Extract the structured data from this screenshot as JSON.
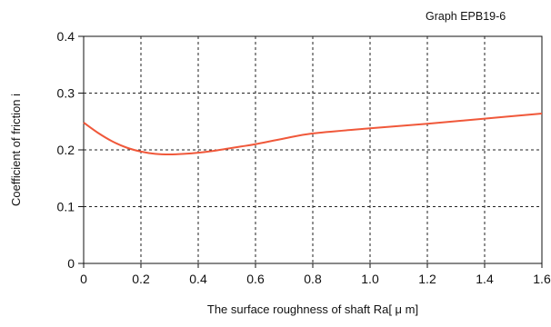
{
  "chart_data": {
    "type": "line",
    "title": "Graph EPB19-6",
    "xlabel": "The surface roughness of shaft  Ra[ μ m]",
    "ylabel": "Coefficient of friction i",
    "xlim": [
      0,
      1.6
    ],
    "ylim": [
      0,
      0.4
    ],
    "xticks": [
      "0",
      "0.2",
      "0.4",
      "0.6",
      "0.8",
      "1.0",
      "1.2",
      "1.4",
      "1.6"
    ],
    "yticks": [
      "0",
      "0.1",
      "0.2",
      "0.3",
      "0.4"
    ],
    "grid": true,
    "line_color": "#f0583a",
    "series": [
      {
        "x": [
          0,
          0.05,
          0.1,
          0.15,
          0.2,
          0.25,
          0.3,
          0.35,
          0.4,
          0.45,
          0.5,
          0.55,
          0.6,
          0.7,
          0.8,
          1.0,
          1.2,
          1.4,
          1.6
        ],
        "values": [
          0.248,
          0.23,
          0.215,
          0.204,
          0.197,
          0.193,
          0.192,
          0.193,
          0.195,
          0.198,
          0.202,
          0.206,
          0.21,
          0.22,
          0.229,
          0.238,
          0.246,
          0.255,
          0.264
        ]
      }
    ]
  }
}
